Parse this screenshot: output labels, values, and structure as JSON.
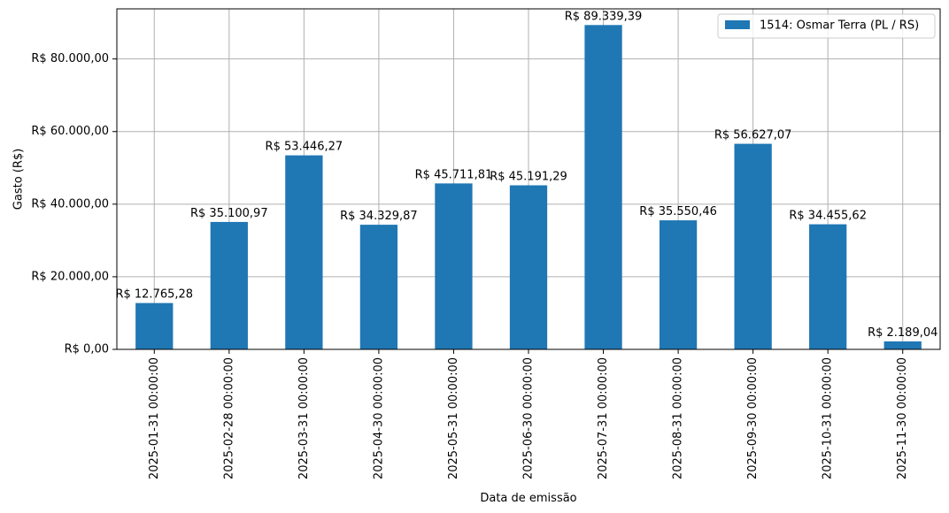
{
  "chart_data": {
    "type": "bar",
    "categories": [
      "2025-01-31 00:00:00",
      "2025-02-28 00:00:00",
      "2025-03-31 00:00:00",
      "2025-04-30 00:00:00",
      "2025-05-31 00:00:00",
      "2025-06-30 00:00:00",
      "2025-07-31 00:00:00",
      "2025-08-31 00:00:00",
      "2025-09-30 00:00:00",
      "2025-10-31 00:00:00",
      "2025-11-30 00:00:00"
    ],
    "series": [
      {
        "name": "1514: Osmar Terra (PL / RS)",
        "color": "#1f77b4",
        "values": [
          12765.28,
          35100.97,
          53446.27,
          34329.87,
          45711.81,
          45191.29,
          89339.39,
          35550.46,
          56627.07,
          34455.62,
          2189.04
        ],
        "labels": [
          "R$ 12.765,28",
          "R$ 35.100,97",
          "R$ 53.446,27",
          "R$ 34.329,87",
          "R$ 45.711,81",
          "R$ 45.191,29",
          "R$ 89.339,39",
          "R$ 35.550,46",
          "R$ 56.627,07",
          "R$ 34.455,62",
          "R$ 2.189,04"
        ]
      }
    ],
    "title": "",
    "xlabel": "Data de emissão",
    "ylabel": "Gasto (R$)",
    "ylim": [
      0,
      93800
    ],
    "yticks": [
      0,
      20000,
      40000,
      60000,
      80000
    ],
    "ytick_labels": [
      "R$ 0,00",
      "R$ 20.000,00",
      "R$ 40.000,00",
      "R$ 60.000,00",
      "R$ 80.000,00"
    ],
    "grid": true,
    "legend_position": "top-right"
  }
}
